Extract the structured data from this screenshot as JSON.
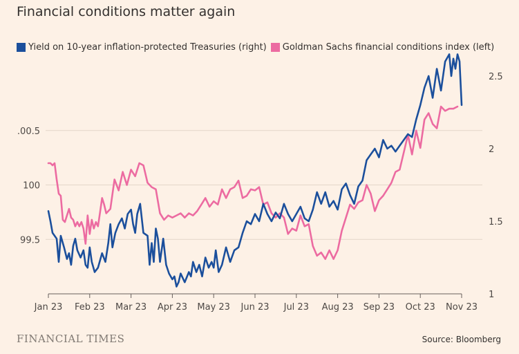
{
  "title": "Financial conditions matter again",
  "footer": {
    "logo": "FINANCIAL TIMES",
    "source": "Source: Bloomberg"
  },
  "colors": {
    "background": "#fdf1e6",
    "grid": "#e3d6c9",
    "axis_text": "#4d4845"
  },
  "chart_data": {
    "type": "line",
    "legend_position": "top-left",
    "grid": true,
    "x_ticks": [
      "Jan 23",
      "Feb 23",
      "Mar 23",
      "Apr 23",
      "May 23",
      "Jun 23",
      "Jul 23",
      "Aug 23",
      "Sep 23",
      "Oct 23",
      "Nov 23"
    ],
    "x_range": [
      0,
      10
    ],
    "left_axis": {
      "ticks": [
        "99.5",
        "100",
        ".00.5"
      ],
      "tick_values": [
        99.5,
        100,
        100.5
      ],
      "range": [
        99.0,
        101.0
      ]
    },
    "right_axis": {
      "ticks": [
        "1",
        "1.5",
        "2",
        "2.5"
      ],
      "tick_values": [
        1,
        1.5,
        2,
        2.5
      ],
      "range": [
        1.0,
        2.5
      ]
    },
    "series": [
      {
        "name": "Yield on 10-year inflation-protected Treasuries (right)",
        "axis": "right",
        "color": "#1b4f9c",
        "x": [
          0,
          0.05,
          0.1,
          0.2,
          0.25,
          0.3,
          0.38,
          0.45,
          0.5,
          0.55,
          0.6,
          0.65,
          0.7,
          0.78,
          0.85,
          0.9,
          0.95,
          1.0,
          1.05,
          1.12,
          1.2,
          1.3,
          1.38,
          1.45,
          1.5,
          1.55,
          1.62,
          1.7,
          1.78,
          1.85,
          1.92,
          2.0,
          2.05,
          2.1,
          2.15,
          2.22,
          2.3,
          2.4,
          2.45,
          2.5,
          2.55,
          2.6,
          2.65,
          2.7,
          2.78,
          2.85,
          2.92,
          3.0,
          3.05,
          3.1,
          3.15,
          3.2,
          3.3,
          3.4,
          3.45,
          3.5,
          3.58,
          3.65,
          3.72,
          3.8,
          3.88,
          3.95,
          4.0,
          4.05,
          4.12,
          4.2,
          4.3,
          4.4,
          4.5,
          4.6,
          4.7,
          4.8,
          4.9,
          5.0,
          5.1,
          5.2,
          5.3,
          5.4,
          5.5,
          5.6,
          5.7,
          5.8,
          5.9,
          6.0,
          6.1,
          6.2,
          6.3,
          6.4,
          6.5,
          6.6,
          6.7,
          6.8,
          6.9,
          7.0,
          7.1,
          7.2,
          7.3,
          7.4,
          7.5,
          7.6,
          7.7,
          7.8,
          7.9,
          8.0,
          8.1,
          8.2,
          8.3,
          8.4,
          8.5,
          8.6,
          8.7,
          8.8,
          8.9,
          9.0,
          9.1,
          9.2,
          9.3,
          9.4,
          9.5,
          9.6,
          9.7,
          9.75,
          9.8,
          9.85,
          9.9,
          9.95,
          10.0
        ],
        "values": [
          1.57,
          1.5,
          1.42,
          1.38,
          1.22,
          1.4,
          1.32,
          1.24,
          1.28,
          1.2,
          1.33,
          1.38,
          1.3,
          1.25,
          1.3,
          1.2,
          1.18,
          1.32,
          1.22,
          1.15,
          1.18,
          1.28,
          1.22,
          1.35,
          1.48,
          1.32,
          1.42,
          1.48,
          1.52,
          1.45,
          1.55,
          1.58,
          1.48,
          1.42,
          1.55,
          1.62,
          1.42,
          1.4,
          1.2,
          1.35,
          1.22,
          1.45,
          1.38,
          1.22,
          1.38,
          1.2,
          1.14,
          1.1,
          1.12,
          1.05,
          1.08,
          1.14,
          1.08,
          1.15,
          1.12,
          1.22,
          1.15,
          1.2,
          1.12,
          1.25,
          1.18,
          1.22,
          1.18,
          1.3,
          1.15,
          1.2,
          1.32,
          1.22,
          1.3,
          1.32,
          1.42,
          1.5,
          1.48,
          1.55,
          1.5,
          1.62,
          1.55,
          1.5,
          1.56,
          1.52,
          1.62,
          1.55,
          1.5,
          1.55,
          1.6,
          1.52,
          1.5,
          1.58,
          1.7,
          1.62,
          1.7,
          1.6,
          1.64,
          1.58,
          1.72,
          1.76,
          1.68,
          1.62,
          1.74,
          1.78,
          1.92,
          1.96,
          2.0,
          1.94,
          2.06,
          2.0,
          2.02,
          1.98,
          2.02,
          2.06,
          2.1,
          2.08,
          2.2,
          2.3,
          2.42,
          2.5,
          2.35,
          2.55,
          2.4,
          2.6,
          2.65,
          2.5,
          2.62,
          2.55,
          2.65,
          2.6,
          2.3
        ]
      },
      {
        "name": "Goldman Sachs financial conditions index (left)",
        "axis": "left",
        "color": "#ec6ba1",
        "x": [
          0,
          0.05,
          0.1,
          0.15,
          0.2,
          0.25,
          0.3,
          0.35,
          0.4,
          0.45,
          0.5,
          0.55,
          0.6,
          0.65,
          0.7,
          0.75,
          0.8,
          0.85,
          0.9,
          0.95,
          1.0,
          1.05,
          1.1,
          1.15,
          1.2,
          1.25,
          1.3,
          1.35,
          1.4,
          1.5,
          1.6,
          1.7,
          1.8,
          1.9,
          2.0,
          2.1,
          2.2,
          2.3,
          2.4,
          2.5,
          2.6,
          2.7,
          2.8,
          2.9,
          3.0,
          3.1,
          3.2,
          3.3,
          3.4,
          3.5,
          3.6,
          3.7,
          3.8,
          3.9,
          4.0,
          4.1,
          4.2,
          4.3,
          4.4,
          4.5,
          4.6,
          4.7,
          4.8,
          4.9,
          5.0,
          5.1,
          5.2,
          5.3,
          5.4,
          5.5,
          5.6,
          5.7,
          5.8,
          5.9,
          6.0,
          6.1,
          6.2,
          6.3,
          6.4,
          6.5,
          6.6,
          6.7,
          6.8,
          6.9,
          7.0,
          7.1,
          7.2,
          7.3,
          7.4,
          7.5,
          7.6,
          7.7,
          7.8,
          7.9,
          8.0,
          8.1,
          8.2,
          8.3,
          8.4,
          8.5,
          8.6,
          8.7,
          8.8,
          8.9,
          9.0,
          9.1,
          9.2,
          9.3,
          9.4,
          9.5,
          9.6,
          9.7,
          9.8,
          9.9
        ],
        "values": [
          100.2,
          100.2,
          100.18,
          100.2,
          100.05,
          99.92,
          99.9,
          99.68,
          99.66,
          99.72,
          99.78,
          99.7,
          99.68,
          99.62,
          99.66,
          99.62,
          99.66,
          99.6,
          99.46,
          99.72,
          99.55,
          99.68,
          99.6,
          99.66,
          99.62,
          99.75,
          99.88,
          99.82,
          99.74,
          99.78,
          100.05,
          99.95,
          100.12,
          100.0,
          100.14,
          100.08,
          100.2,
          100.18,
          100.02,
          99.98,
          99.96,
          99.74,
          99.68,
          99.72,
          99.7,
          99.72,
          99.74,
          99.7,
          99.74,
          99.72,
          99.76,
          99.82,
          99.88,
          99.8,
          99.85,
          99.82,
          99.96,
          99.88,
          99.96,
          99.98,
          100.04,
          99.88,
          99.9,
          99.96,
          99.95,
          99.98,
          99.82,
          99.84,
          99.74,
          99.7,
          99.74,
          99.7,
          99.55,
          99.6,
          99.58,
          99.72,
          99.62,
          99.64,
          99.44,
          99.35,
          99.38,
          99.32,
          99.4,
          99.32,
          99.4,
          99.58,
          99.7,
          99.82,
          99.78,
          99.84,
          99.86,
          100.0,
          99.92,
          99.76,
          99.86,
          99.9,
          99.96,
          100.02,
          100.12,
          100.14,
          100.3,
          100.46,
          100.28,
          100.5,
          100.34,
          100.6,
          100.66,
          100.56,
          100.52,
          100.72,
          100.68,
          100.7,
          100.7,
          100.72
        ]
      }
    ]
  }
}
